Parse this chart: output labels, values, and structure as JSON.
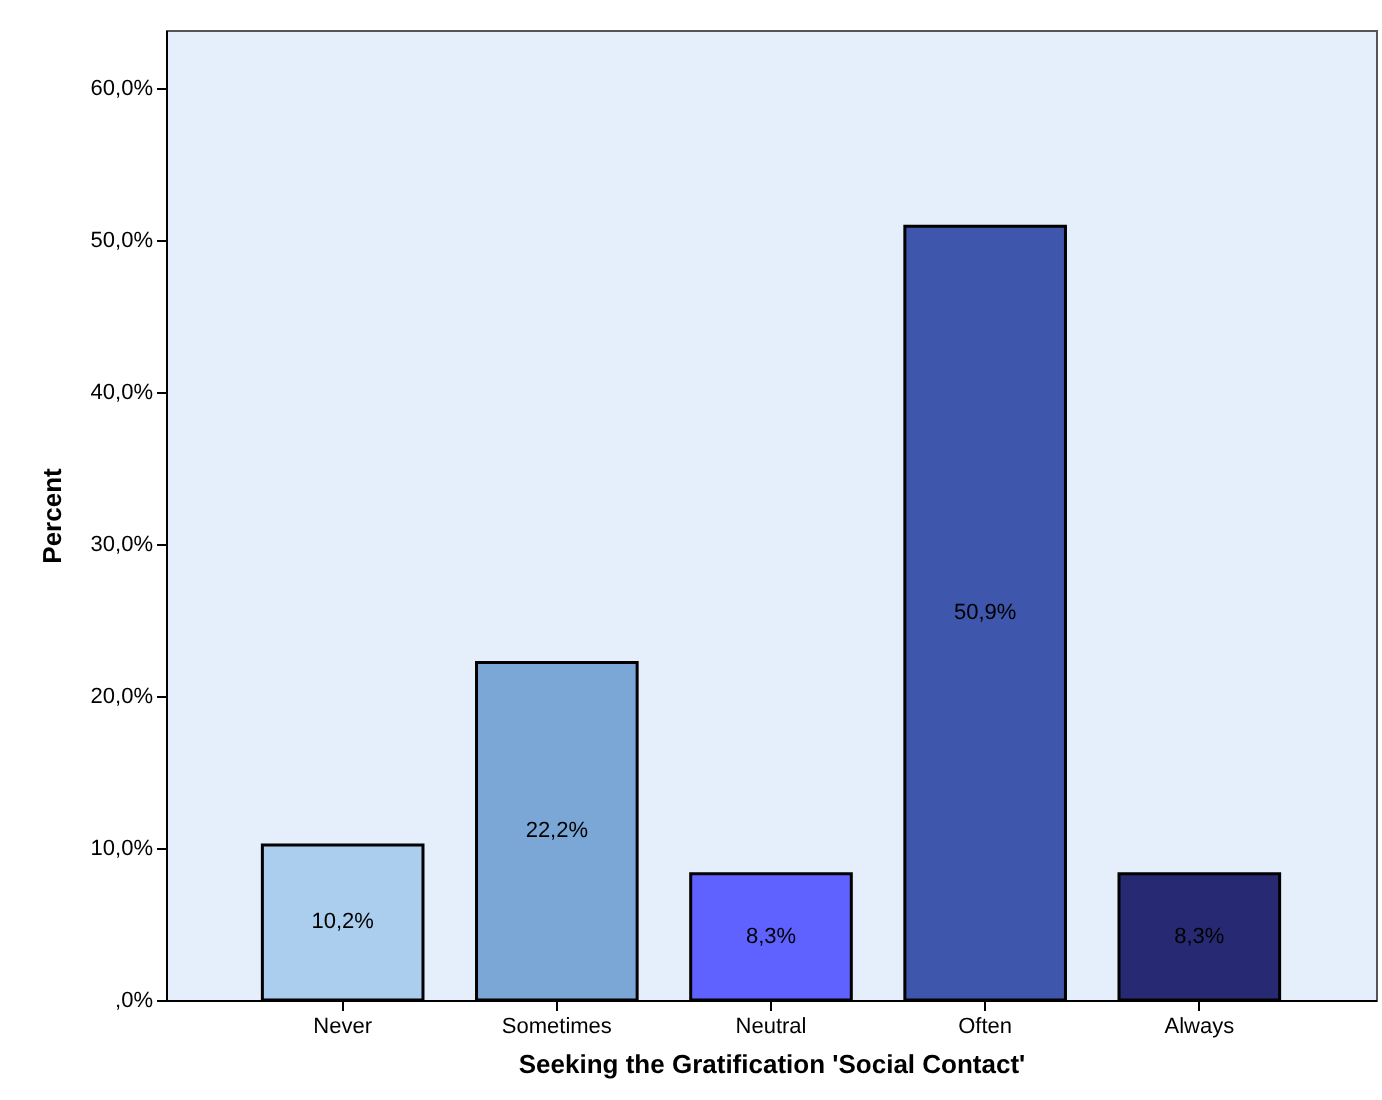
{
  "chart_data": {
    "type": "bar",
    "xlabel": "Seeking the Gratification 'Social Contact'",
    "ylabel": "Percent",
    "categories": [
      "Never",
      "Sometimes",
      "Neutral",
      "Often",
      "Always"
    ],
    "values": [
      10.2,
      22.2,
      8.3,
      50.9,
      8.3
    ],
    "colors": [
      "#abcdee",
      "#7aa7d6",
      "#5f62ff",
      "#3e56ab",
      "#272a72"
    ],
    "value_labels": [
      "10,2%",
      "22,2%",
      "8,3%",
      "50,9%",
      "8,3%"
    ],
    "ylim": [
      0,
      63.8
    ],
    "yticks": [
      {
        "value": 0,
        "label": ",0%"
      },
      {
        "value": 10,
        "label": "10,0%"
      },
      {
        "value": 20,
        "label": "20,0%"
      },
      {
        "value": 30,
        "label": "30,0%"
      },
      {
        "value": 40,
        "label": "40,0%"
      },
      {
        "value": 50,
        "label": "50,0%"
      },
      {
        "value": 60,
        "label": "60,0%"
      }
    ],
    "grid": false
  }
}
